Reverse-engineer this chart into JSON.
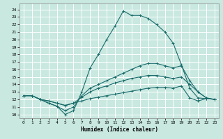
{
  "xlabel": "Humidex (Indice chaleur)",
  "bg_color": "#c8e8e0",
  "grid_color": "#ffffff",
  "line_color": "#1a6b6b",
  "xlim": [
    -0.5,
    23.5
  ],
  "ylim": [
    9.5,
    24.8
  ],
  "xticks": [
    0,
    1,
    2,
    3,
    4,
    5,
    6,
    7,
    8,
    9,
    10,
    11,
    12,
    13,
    14,
    15,
    16,
    17,
    18,
    19,
    20,
    21,
    22,
    23
  ],
  "yticks": [
    10,
    11,
    12,
    13,
    14,
    15,
    16,
    17,
    18,
    19,
    20,
    21,
    22,
    23,
    24
  ],
  "line1_x": [
    0,
    1,
    2,
    3,
    4,
    5,
    6,
    7,
    8,
    9,
    10,
    11,
    12,
    13,
    14,
    15,
    16,
    17,
    18,
    19,
    20,
    21,
    22,
    23
  ],
  "line1_y": [
    12.5,
    12.5,
    12.0,
    11.5,
    11.1,
    10.0,
    10.5,
    13.0,
    16.2,
    18.0,
    20.0,
    21.8,
    23.8,
    23.2,
    23.2,
    22.8,
    22.0,
    21.0,
    19.5,
    16.6,
    13.5,
    12.2,
    12.1,
    12.0
  ],
  "line2_x": [
    0,
    1,
    2,
    3,
    4,
    5,
    6,
    7,
    8,
    9,
    10,
    11,
    12,
    13,
    14,
    15,
    16,
    17,
    18,
    19,
    20,
    21,
    22,
    23
  ],
  "line2_y": [
    12.5,
    12.5,
    12.0,
    11.5,
    11.1,
    10.5,
    11.0,
    12.5,
    13.5,
    14.0,
    14.5,
    15.0,
    15.5,
    16.0,
    16.5,
    16.8,
    16.8,
    16.5,
    16.2,
    16.5,
    14.5,
    13.0,
    12.2,
    12.0
  ],
  "line3_x": [
    0,
    1,
    2,
    3,
    4,
    5,
    6,
    7,
    8,
    9,
    10,
    11,
    12,
    13,
    14,
    15,
    16,
    17,
    18,
    19,
    20,
    21,
    22,
    23
  ],
  "line3_y": [
    12.5,
    12.5,
    12.0,
    11.8,
    11.5,
    11.2,
    11.5,
    12.3,
    13.0,
    13.5,
    13.8,
    14.2,
    14.5,
    14.8,
    15.0,
    15.2,
    15.2,
    15.0,
    14.8,
    15.0,
    14.0,
    13.0,
    12.2,
    12.0
  ],
  "line4_x": [
    0,
    1,
    2,
    3,
    4,
    5,
    6,
    7,
    8,
    9,
    10,
    11,
    12,
    13,
    14,
    15,
    16,
    17,
    18,
    19,
    20,
    21,
    22,
    23
  ],
  "line4_y": [
    12.5,
    12.5,
    12.0,
    11.8,
    11.5,
    11.2,
    11.5,
    11.8,
    12.1,
    12.3,
    12.5,
    12.7,
    12.9,
    13.1,
    13.3,
    13.5,
    13.6,
    13.6,
    13.5,
    13.8,
    12.2,
    11.8,
    12.1,
    12.0
  ]
}
